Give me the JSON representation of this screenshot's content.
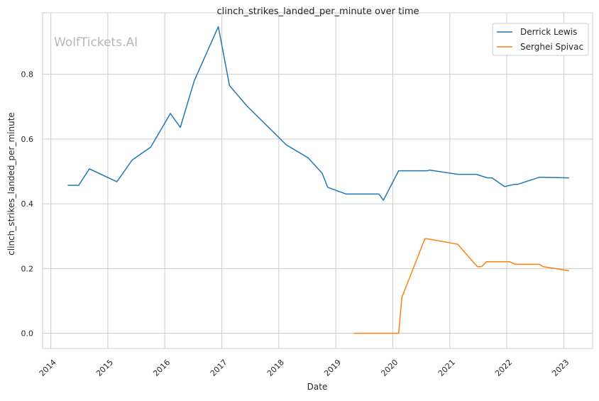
{
  "chart_data": {
    "type": "line",
    "title": "clinch_strikes_landed_per_minute over time",
    "xlabel": "Date",
    "ylabel": "clinch_strikes_landed_per_minute",
    "watermark": "WolfTickets.AI",
    "x_ticks": [
      "2014",
      "2015",
      "2016",
      "2017",
      "2018",
      "2019",
      "2020",
      "2021",
      "2022",
      "2023"
    ],
    "y_ticks": [
      "0.0",
      "0.2",
      "0.4",
      "0.6",
      "0.8"
    ],
    "xlim": [
      "2013-11-09",
      "2023-07-05"
    ],
    "ylim": [
      -0.047,
      0.99
    ],
    "grid": true,
    "legend_position": "upper right",
    "series": [
      {
        "name": "Derrick Lewis",
        "color": "#1f77b4",
        "points": [
          [
            "2014-04-19",
            0.457
          ],
          [
            "2014-06-28",
            0.457
          ],
          [
            "2014-09-05",
            0.508
          ],
          [
            "2015-02-28",
            0.468
          ],
          [
            "2015-06-06",
            0.535
          ],
          [
            "2015-10-03",
            0.575
          ],
          [
            "2016-02-06",
            0.679
          ],
          [
            "2016-04-10",
            0.636
          ],
          [
            "2016-07-08",
            0.78
          ],
          [
            "2016-12-09",
            0.947
          ],
          [
            "2017-02-19",
            0.765
          ],
          [
            "2017-06-11",
            0.702
          ],
          [
            "2018-02-18",
            0.582
          ],
          [
            "2018-07-07",
            0.542
          ],
          [
            "2018-10-06",
            0.494
          ],
          [
            "2018-11-10",
            0.451
          ],
          [
            "2019-03-09",
            0.43
          ],
          [
            "2019-10-05",
            0.43
          ],
          [
            "2019-11-02",
            0.411
          ],
          [
            "2020-02-08",
            0.502
          ],
          [
            "2020-08-08",
            0.502
          ],
          [
            "2020-08-27",
            0.504
          ],
          [
            "2021-02-20",
            0.491
          ],
          [
            "2021-06-19",
            0.491
          ],
          [
            "2021-08-30",
            0.48
          ],
          [
            "2021-09-28",
            0.48
          ],
          [
            "2021-12-18",
            0.453
          ],
          [
            "2022-02-19",
            0.46
          ],
          [
            "2022-03-12",
            0.46
          ],
          [
            "2022-07-30",
            0.482
          ],
          [
            "2023-02-04",
            0.48
          ]
        ]
      },
      {
        "name": "Serghei Spivac",
        "color": "#ff7f0e",
        "points": [
          [
            "2019-04-27",
            0.0
          ],
          [
            "2020-02-08",
            0.0
          ],
          [
            "2020-02-29",
            0.111
          ],
          [
            "2020-07-25",
            0.292
          ],
          [
            "2020-08-08",
            0.292
          ],
          [
            "2021-02-20",
            0.275
          ],
          [
            "2021-06-26",
            0.206
          ],
          [
            "2021-07-24",
            0.206
          ],
          [
            "2021-08-23",
            0.221
          ],
          [
            "2022-01-20",
            0.221
          ],
          [
            "2022-02-25",
            0.213
          ],
          [
            "2022-07-30",
            0.213
          ],
          [
            "2022-08-20",
            0.206
          ],
          [
            "2023-02-04",
            0.193
          ]
        ]
      }
    ]
  }
}
